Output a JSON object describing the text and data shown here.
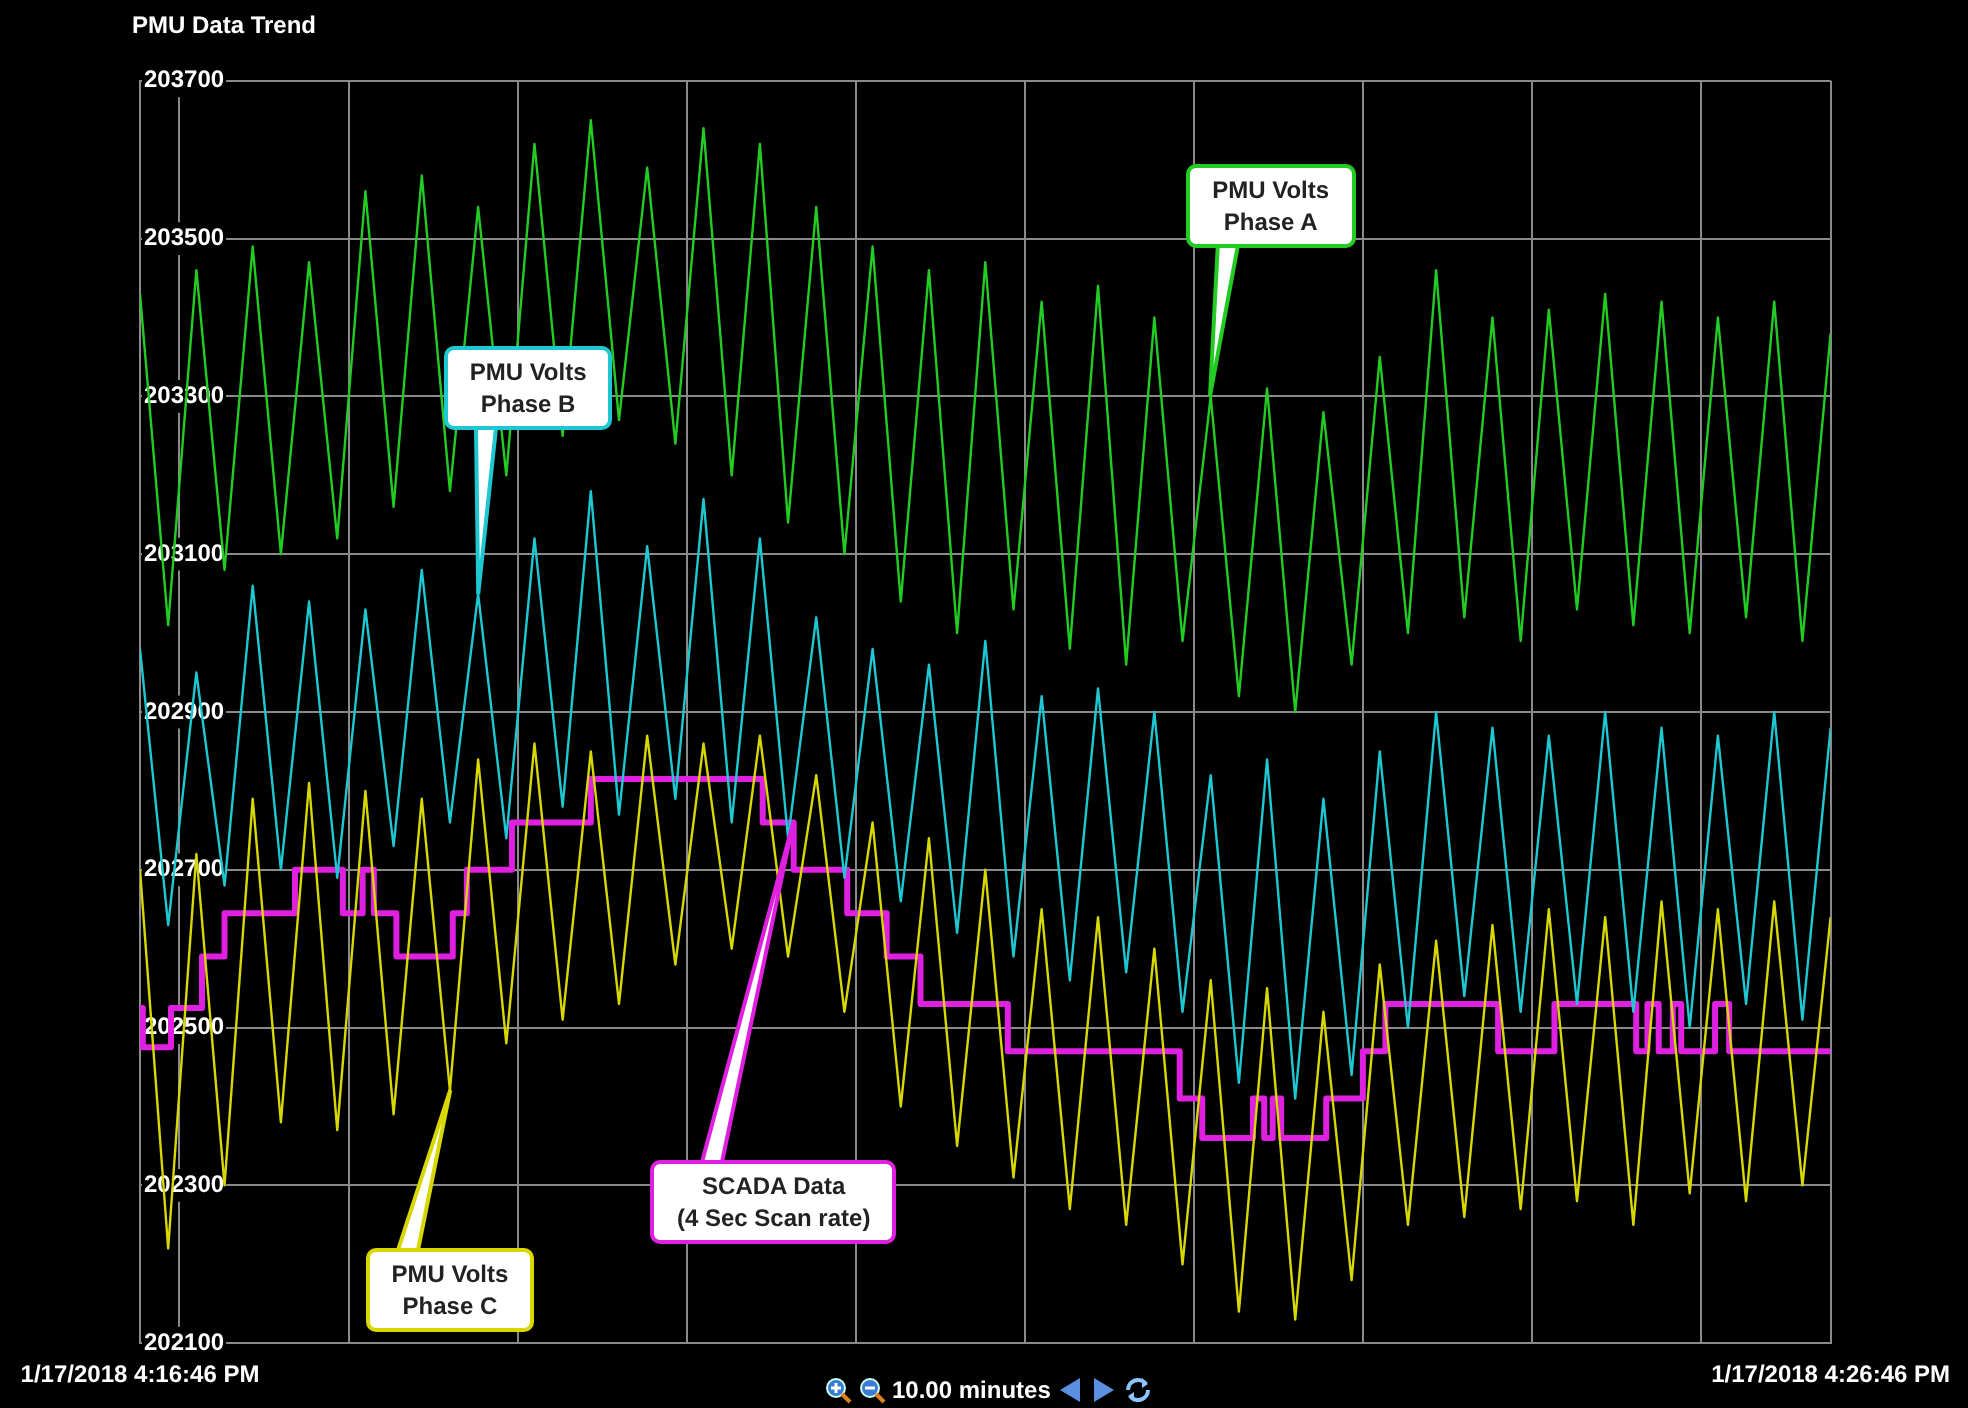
{
  "chart_data": {
    "type": "line",
    "title": "PMU Data Trend",
    "x": [
      "2018-01-17T16:16:46",
      "2018-01-17T16:16:56",
      "2018-01-17T16:17:06",
      "2018-01-17T16:17:16",
      "2018-01-17T16:17:26",
      "2018-01-17T16:17:36",
      "2018-01-17T16:17:46",
      "2018-01-17T16:17:56",
      "2018-01-17T16:18:06",
      "2018-01-17T16:18:16",
      "2018-01-17T16:18:26",
      "2018-01-17T16:18:36",
      "2018-01-17T16:18:46",
      "2018-01-17T16:18:56",
      "2018-01-17T16:19:06",
      "2018-01-17T16:19:16",
      "2018-01-17T16:19:26",
      "2018-01-17T16:19:36",
      "2018-01-17T16:19:46",
      "2018-01-17T16:19:56",
      "2018-01-17T16:20:06",
      "2018-01-17T16:20:16",
      "2018-01-17T16:20:26",
      "2018-01-17T16:20:36",
      "2018-01-17T16:20:46",
      "2018-01-17T16:20:56",
      "2018-01-17T16:21:06",
      "2018-01-17T16:21:16",
      "2018-01-17T16:21:26",
      "2018-01-17T16:21:36",
      "2018-01-17T16:21:46",
      "2018-01-17T16:21:56",
      "2018-01-17T16:22:06",
      "2018-01-17T16:22:16",
      "2018-01-17T16:22:26",
      "2018-01-17T16:22:36",
      "2018-01-17T16:22:46",
      "2018-01-17T16:22:56",
      "2018-01-17T16:23:06",
      "2018-01-17T16:23:16",
      "2018-01-17T16:23:26",
      "2018-01-17T16:23:36",
      "2018-01-17T16:23:46",
      "2018-01-17T16:23:56",
      "2018-01-17T16:24:06",
      "2018-01-17T16:24:16",
      "2018-01-17T16:24:26",
      "2018-01-17T16:24:36",
      "2018-01-17T16:24:46",
      "2018-01-17T16:24:56",
      "2018-01-17T16:25:06",
      "2018-01-17T16:25:16",
      "2018-01-17T16:25:26",
      "2018-01-17T16:25:36",
      "2018-01-17T16:25:46",
      "2018-01-17T16:25:56",
      "2018-01-17T16:26:06",
      "2018-01-17T16:26:16",
      "2018-01-17T16:26:26",
      "2018-01-17T16:26:36",
      "2018-01-17T16:26:46"
    ],
    "series": [
      {
        "name": "PMU Volts Phase A",
        "color": "#22cc22",
        "values": [
          203430,
          203010,
          203460,
          203080,
          203490,
          203100,
          203470,
          203120,
          203560,
          203160,
          203580,
          203180,
          203540,
          203200,
          203620,
          203250,
          203650,
          203270,
          203590,
          203240,
          203640,
          203200,
          203620,
          203140,
          203540,
          203100,
          203490,
          203040,
          203460,
          203000,
          203470,
          203030,
          203420,
          202980,
          203440,
          202960,
          203400,
          202990,
          203300,
          202920,
          203310,
          202900,
          203280,
          202960,
          203350,
          203000,
          203460,
          203020,
          203400,
          202990,
          203410,
          203030,
          203430,
          203010,
          203420,
          203000,
          203400,
          203020,
          203420,
          202990,
          203380
        ]
      },
      {
        "name": "PMU Volts Phase B",
        "color": "#1ec8d2",
        "values": [
          202980,
          202630,
          202950,
          202680,
          203060,
          202700,
          203040,
          202690,
          203030,
          202730,
          203080,
          202760,
          203050,
          202740,
          203120,
          202780,
          203180,
          202770,
          203110,
          202790,
          203170,
          202760,
          203120,
          202740,
          203020,
          202690,
          202980,
          202660,
          202960,
          202620,
          202990,
          202590,
          202920,
          202560,
          202930,
          202570,
          202900,
          202520,
          202820,
          202430,
          202840,
          202410,
          202790,
          202440,
          202850,
          202500,
          202900,
          202540,
          202880,
          202520,
          202870,
          202530,
          202900,
          202520,
          202880,
          202500,
          202870,
          202530,
          202900,
          202510,
          202880
        ]
      },
      {
        "name": "PMU Volts Phase C",
        "color": "#d8d800",
        "values": [
          202700,
          202220,
          202720,
          202300,
          202790,
          202380,
          202810,
          202370,
          202800,
          202390,
          202790,
          202420,
          202840,
          202480,
          202860,
          202510,
          202850,
          202530,
          202870,
          202580,
          202860,
          202600,
          202870,
          202590,
          202820,
          202520,
          202760,
          202400,
          202740,
          202350,
          202700,
          202310,
          202650,
          202270,
          202640,
          202250,
          202600,
          202200,
          202560,
          202140,
          202550,
          202130,
          202520,
          202180,
          202580,
          202250,
          202610,
          202260,
          202630,
          202270,
          202650,
          202280,
          202640,
          202250,
          202660,
          202290,
          202650,
          202280,
          202660,
          202300,
          202640
        ]
      },
      {
        "name": "SCADA Data (4 Sec Scan rate)",
        "type": "step",
        "color": "#e020e0",
        "x": [
          "2018-01-17T16:16:46",
          "2018-01-17T16:16:47",
          "2018-01-17T16:16:57",
          "2018-01-17T16:17:08",
          "2018-01-17T16:17:16",
          "2018-01-17T16:17:41",
          "2018-01-17T16:17:58",
          "2018-01-17T16:18:05",
          "2018-01-17T16:18:09",
          "2018-01-17T16:18:17",
          "2018-01-17T16:18:37",
          "2018-01-17T16:18:42",
          "2018-01-17T16:18:58",
          "2018-01-17T16:19:26",
          "2018-01-17T16:20:27",
          "2018-01-17T16:20:38",
          "2018-01-17T16:20:57",
          "2018-01-17T16:21:11",
          "2018-01-17T16:21:23",
          "2018-01-17T16:21:54",
          "2018-01-17T16:22:55",
          "2018-01-17T16:23:03",
          "2018-01-17T16:23:21",
          "2018-01-17T16:23:25",
          "2018-01-17T16:23:28",
          "2018-01-17T16:23:31",
          "2018-01-17T16:23:47",
          "2018-01-17T16:24:00",
          "2018-01-17T16:24:08",
          "2018-01-17T16:24:48",
          "2018-01-17T16:25:08",
          "2018-01-17T16:25:37",
          "2018-01-17T16:25:41",
          "2018-01-17T16:25:45",
          "2018-01-17T16:25:50",
          "2018-01-17T16:25:53",
          "2018-01-17T16:26:05",
          "2018-01-17T16:26:10",
          "2018-01-17T16:26:21",
          "2018-01-17T16:26:46"
        ],
        "values": [
          202475,
          202525,
          202475,
          202525,
          202590,
          202645,
          202700,
          202645,
          202700,
          202645,
          202590,
          202645,
          202700,
          202760,
          202815,
          202760,
          202700,
          202645,
          202590,
          202530,
          202470,
          202410,
          202360,
          202410,
          202360,
          202410,
          202360,
          202410,
          202470,
          202530,
          202470,
          202530,
          202470,
          202530,
          202470,
          202530,
          202470,
          202530,
          202470,
          202470
        ]
      }
    ],
    "xlim": [
      "2018-01-17T16:16:46",
      "2018-01-17T16:26:46"
    ],
    "xticks": [
      {
        "value": "2018-01-17T16:16:46",
        "label": "1/17/2018 4:16:46 PM"
      },
      {
        "value": "2018-01-17T16:17",
        "label": null
      },
      {
        "value": "2018-01-17T16:18",
        "label": null
      },
      {
        "value": "2018-01-17T16:19",
        "label": null
      },
      {
        "value": "2018-01-17T16:20",
        "label": null
      },
      {
        "value": "2018-01-17T16:21",
        "label": null
      },
      {
        "value": "2018-01-17T16:22",
        "label": null
      },
      {
        "value": "2018-01-17T16:23",
        "label": null
      },
      {
        "value": "2018-01-17T16:24",
        "label": null
      },
      {
        "value": "2018-01-17T16:25",
        "label": null
      },
      {
        "value": "2018-01-17T16:26",
        "label": null
      },
      {
        "value": "2018-01-17T16:26:46",
        "label": "1/17/2018 4:26:46 PM"
      }
    ],
    "ylim": [
      202100,
      203700
    ],
    "yticks": [
      202100,
      202300,
      202500,
      202700,
      202900,
      203100,
      203300,
      203500,
      203700
    ],
    "annotations": [
      "10.00 minutes"
    ],
    "grid": true,
    "legend": false,
    "marker": "none",
    "line_style": "solid"
  }
}
